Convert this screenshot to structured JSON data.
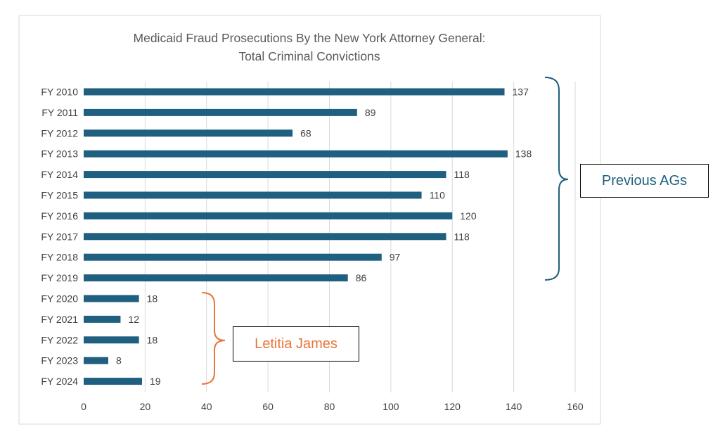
{
  "chart_data": {
    "type": "bar",
    "orientation": "horizontal",
    "title": "Medicaid Fraud Prosecutions By the New York Attorney General:",
    "subtitle": "Total Criminal Convictions",
    "categories": [
      "FY 2010",
      "FY 2011",
      "FY 2012",
      "FY 2013",
      "FY 2014",
      "FY 2015",
      "FY 2016",
      "FY 2017",
      "FY 2018",
      "FY 2019",
      "FY 2020",
      "FY 2021",
      "FY 2022",
      "FY 2023",
      "FY 2024"
    ],
    "values": [
      137,
      89,
      68,
      138,
      118,
      110,
      120,
      118,
      97,
      86,
      18,
      12,
      18,
      8,
      19
    ],
    "xlim": [
      0,
      160
    ],
    "xticks": [
      0,
      20,
      40,
      60,
      80,
      100,
      120,
      140,
      160
    ],
    "grid": true,
    "legend": "none",
    "annotations": [
      {
        "text": "Previous AGs",
        "from": "FY 2010",
        "to": "FY 2019",
        "color": "#1f5f7f"
      },
      {
        "text": "Letitia James",
        "from": "FY 2020",
        "to": "FY 2024",
        "color": "#e8753a"
      }
    ],
    "colors": {
      "bar": "#1f5f7f",
      "grid": "#d9d9d9",
      "text": "#404040",
      "title": "#595959"
    }
  }
}
